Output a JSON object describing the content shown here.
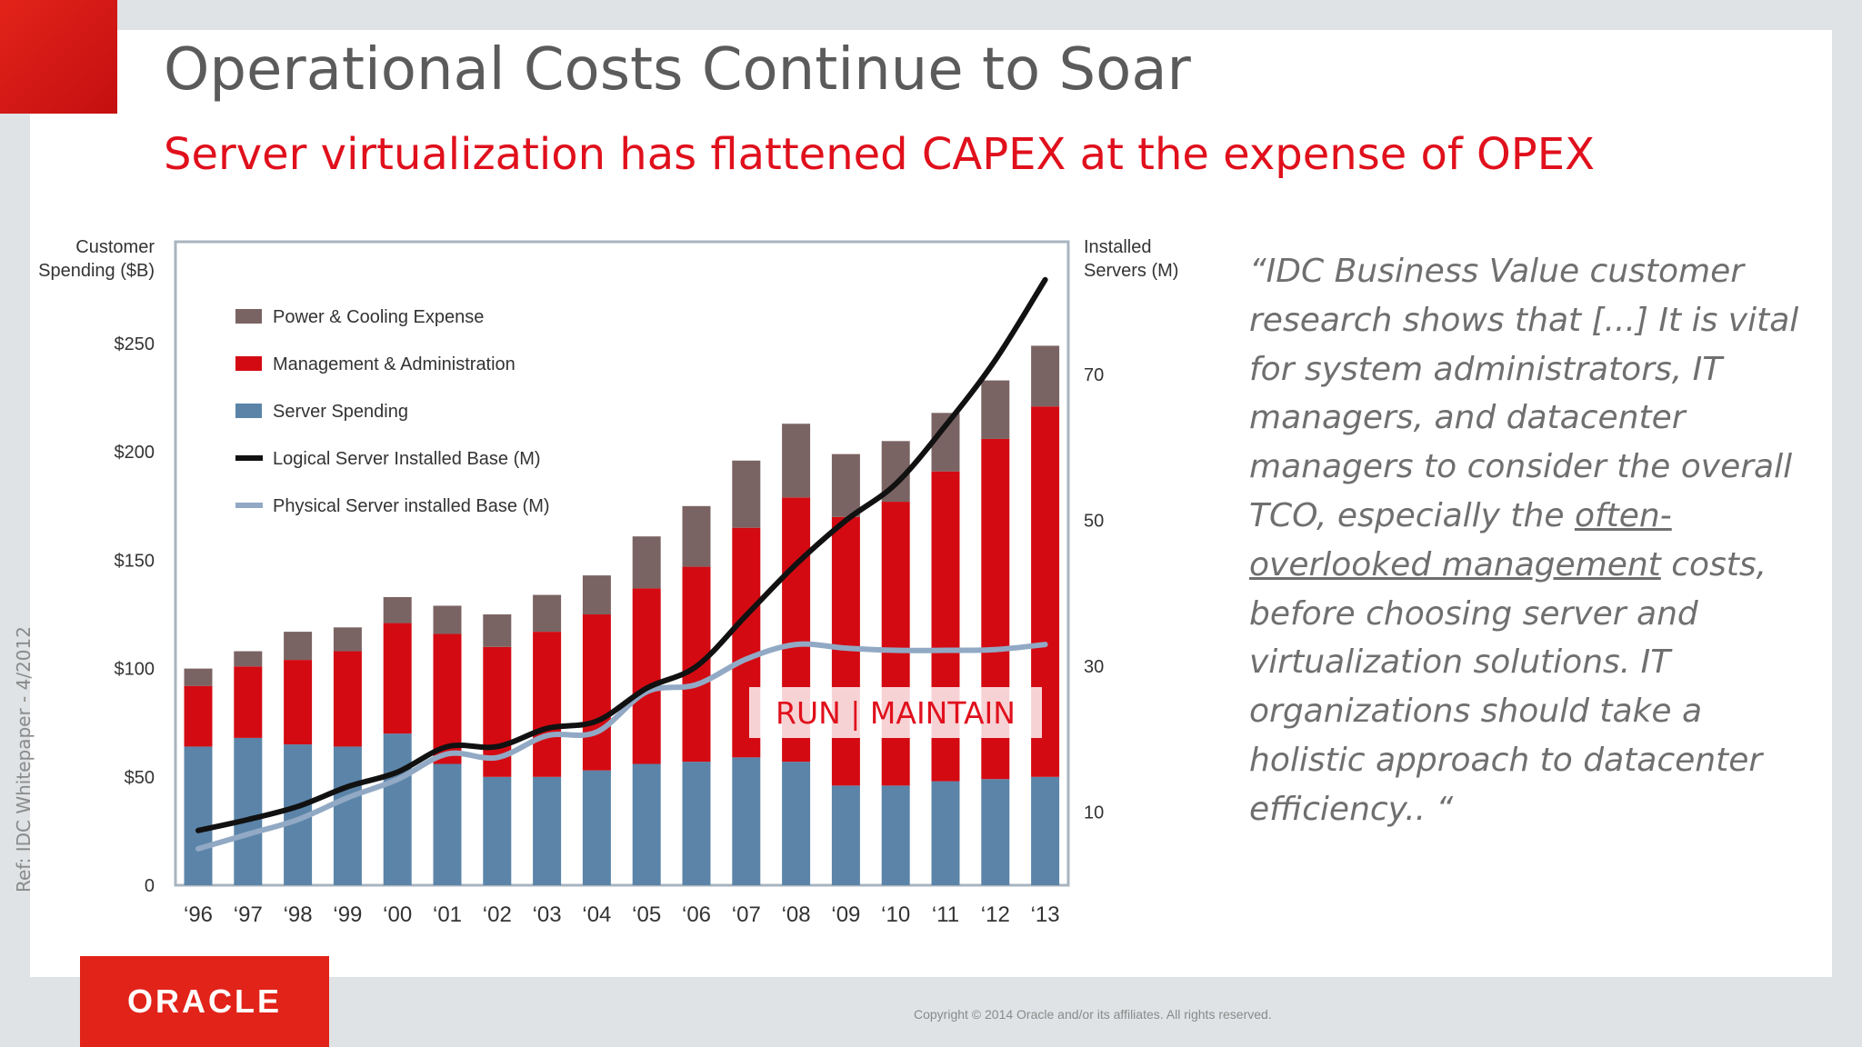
{
  "slide": {
    "title": "Operational Costs Continue to Soar",
    "subtitle": "Server virtualization has flattened CAPEX at the expense of OPEX",
    "quote_parts": [
      "“IDC Business Value customer research shows that [...] It is vital for system administrators, IT managers, and datacenter managers to consider the overall TCO, especially the ",
      "often-overlooked management",
      " costs, before choosing server and virtualization solutions. IT organizations should take a holistic approach to datacenter efficiency.. “"
    ],
    "ref": "Ref:  IDC Whitepaper - 4/2012",
    "logo": "ORACLE",
    "copyright": "Copyright © 2014 Oracle and/or its affiliates. All rights reserved.",
    "colors": {
      "accent_red": "#e2231a",
      "subtitle_red": "#e0101c"
    }
  },
  "chart_data": {
    "type": "bar",
    "stacked": true,
    "categories": [
      "‘96",
      "‘97",
      "‘98",
      "‘99",
      "‘00",
      "‘01",
      "‘02",
      "‘03",
      "‘04",
      "‘05",
      "‘06",
      "‘07",
      "‘08",
      "‘09",
      "‘10",
      "‘11",
      "‘12",
      "‘13"
    ],
    "series": [
      {
        "name": "Server Spending",
        "color": "#5b84a8",
        "values": [
          64,
          68,
          65,
          64,
          70,
          56,
          50,
          50,
          53,
          56,
          57,
          59,
          57,
          46,
          46,
          48,
          49,
          50
        ]
      },
      {
        "name": "Management & Administration",
        "color": "#d40a12",
        "values": [
          28,
          33,
          39,
          44,
          51,
          60,
          60,
          67,
          72,
          81,
          90,
          106,
          122,
          124,
          131,
          143,
          157,
          171
        ]
      },
      {
        "name": "Power & Cooling Expense",
        "color": "#7a6463",
        "values": [
          8,
          7,
          13,
          11,
          12,
          13,
          15,
          17,
          18,
          24,
          28,
          31,
          34,
          29,
          28,
          27,
          27,
          28
        ]
      }
    ],
    "lines": [
      {
        "name": "Logical Server Installed Base (M)",
        "color": "#111111",
        "axis": "right",
        "values": [
          7.5,
          9,
          10.8,
          13.5,
          15.5,
          19,
          19,
          21.5,
          22.5,
          27,
          30,
          37,
          44,
          50,
          55,
          63,
          72,
          83
        ]
      },
      {
        "name": "Physical Server installed Base (M)",
        "color": "#91a9c4",
        "axis": "right",
        "values": [
          5,
          7,
          9,
          12,
          14.5,
          18,
          17.5,
          20.5,
          21,
          26.5,
          27.5,
          31,
          33,
          32.5,
          32.2,
          32.2,
          32.3,
          33
        ]
      }
    ],
    "ylabel_left": "Customer Spending ($B)",
    "ylabel_right": "Installed Servers (M)",
    "yticks_left": [
      {
        "value": 0,
        "label": "0"
      },
      {
        "value": 50,
        "label": "$50"
      },
      {
        "value": 100,
        "label": "$100"
      },
      {
        "value": 150,
        "label": "$150"
      },
      {
        "value": 200,
        "label": "$200"
      },
      {
        "value": 250,
        "label": "$250"
      }
    ],
    "yticks_right": [
      {
        "value": 10,
        "label": "10"
      },
      {
        "value": 30,
        "label": "30"
      },
      {
        "value": 50,
        "label": "50"
      },
      {
        "value": 70,
        "label": "70"
      }
    ],
    "ylim_left": [
      0,
      297
    ],
    "ylim_right": [
      0,
      88.2
    ],
    "legend": [
      {
        "label": "Power & Cooling Expense",
        "kind": "box",
        "color": "#7a6463"
      },
      {
        "label": "Management & Administration",
        "kind": "box",
        "color": "#d40a12"
      },
      {
        "label": "Server Spending",
        "kind": "box",
        "color": "#5b84a8"
      },
      {
        "label": "Logical Server Installed Base (M)",
        "kind": "line",
        "color": "#111111"
      },
      {
        "label": "Physical Server installed Base (M)",
        "kind": "line",
        "color": "#91a9c4"
      }
    ],
    "legend_position": "top-left",
    "annotation": {
      "text": "RUN | MAINTAIN",
      "color": "#e0101c"
    },
    "grid": false
  }
}
